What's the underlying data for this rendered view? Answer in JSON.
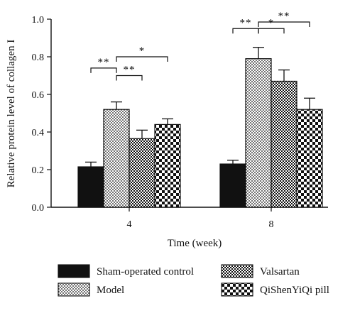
{
  "chart_data": {
    "type": "bar",
    "categories": [
      "4",
      "8"
    ],
    "xlabel": "Time (week)",
    "ylabel": "Relative protein level of collagen I",
    "ylim": [
      0,
      1.0
    ],
    "yticks": [
      "0.0",
      "0.2",
      "0.4",
      "0.6",
      "0.8",
      "1.0"
    ],
    "series": [
      {
        "name": "Sham-operated control",
        "values": [
          0.215,
          0.23
        ],
        "errors": [
          0.025,
          0.02
        ],
        "pattern": "solid-black"
      },
      {
        "name": "Model",
        "values": [
          0.52,
          0.79
        ],
        "errors": [
          0.04,
          0.06
        ],
        "pattern": "dots"
      },
      {
        "name": "Valsartan",
        "values": [
          0.365,
          0.67
        ],
        "errors": [
          0.045,
          0.06
        ],
        "pattern": "fine-checker"
      },
      {
        "name": "QiShenYiQi pill",
        "values": [
          0.44,
          0.52
        ],
        "errors": [
          0.03,
          0.06
        ],
        "pattern": "coarse-checker"
      }
    ],
    "significance": [
      {
        "group": 0,
        "from": 0,
        "to": 1,
        "label": "**",
        "level": 0.74
      },
      {
        "group": 0,
        "from": 1,
        "to": 2,
        "label": "**",
        "level": 0.7
      },
      {
        "group": 0,
        "from": 1,
        "to": 3,
        "label": "*",
        "level": 0.8
      },
      {
        "group": 1,
        "from": 0,
        "to": 1,
        "label": "**",
        "level": 0.95
      },
      {
        "group": 1,
        "from": 1,
        "to": 2,
        "label": "*",
        "level": 0.95
      },
      {
        "group": 1,
        "from": 1,
        "to": 3,
        "label": "**",
        "level": 0.985
      }
    ],
    "legend_placement": "bottom"
  }
}
